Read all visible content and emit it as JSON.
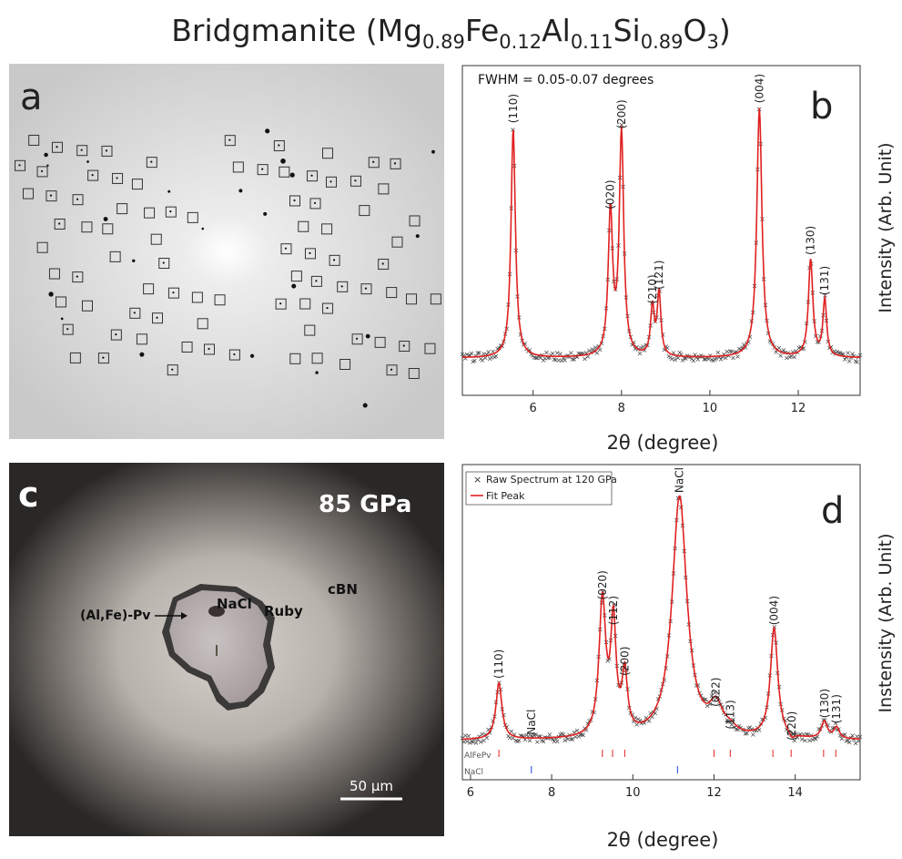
{
  "title": {
    "prefix": "Bridgmanite (",
    "el1": "Mg",
    "s1": "0.89",
    "el2": "Fe",
    "s2": "0.12",
    "el3": "Al",
    "s3": "0.11",
    "el4": "Si",
    "s4": "0.89",
    "el5": "O",
    "s5": "3",
    "suffix": ")"
  },
  "panel_a": {
    "letter": "a"
  },
  "panel_c": {
    "letter": "c",
    "pressure": "85 GPa",
    "labels": {
      "nacl": "NaCl",
      "cbn": "cBN",
      "sample": "(Al,Fe)-Pv",
      "ruby": "Ruby"
    },
    "scale_bar": "50 µm"
  },
  "chart_data": [
    {
      "type": "line",
      "panel": "b",
      "annotation": "FWHM = 0.05-0.07 degrees",
      "xlabel": "2θ (degree)",
      "ylabel": "Intensity (Arb. Unit)",
      "xlim": [
        4.4,
        13.4
      ],
      "xticks": [
        6,
        8,
        10,
        12
      ],
      "ylim": [
        0,
        1.15
      ],
      "baseline": 0.13,
      "peaks": [
        {
          "label": "(110)",
          "x": 5.55,
          "y": 0.93
        },
        {
          "label": "(020)",
          "x": 7.75,
          "y": 0.63
        },
        {
          "label": "(200)",
          "x": 8.0,
          "y": 0.91
        },
        {
          "label": "(210)",
          "x": 8.7,
          "y": 0.3
        },
        {
          "label": "(121)",
          "x": 8.85,
          "y": 0.35
        },
        {
          "label": "(004)",
          "x": 11.12,
          "y": 1.0
        },
        {
          "label": "(130)",
          "x": 12.28,
          "y": 0.47
        },
        {
          "label": "(131)",
          "x": 12.6,
          "y": 0.33
        }
      ],
      "series": [
        {
          "name": "",
          "color": "#e02020"
        }
      ]
    },
    {
      "type": "line",
      "panel": "d",
      "xlabel": "2θ (degree)",
      "ylabel": "Instensity (Arb. Unit)",
      "xlim": [
        5.8,
        15.6
      ],
      "xticks": [
        6,
        8,
        10,
        12,
        14
      ],
      "ylim": [
        0,
        1.12
      ],
      "baseline": 0.14,
      "legend": [
        "Raw Spectrum at 120 GPa",
        "Fit Peak"
      ],
      "legend_position": "top-left",
      "tick_rows": [
        "AlFePv",
        "NaCl"
      ],
      "alfepv_ticks": [
        6.7,
        9.25,
        9.5,
        9.8,
        12.0,
        12.4,
        13.45,
        13.9,
        14.7,
        15.0
      ],
      "nacl_ticks": [
        7.5,
        11.1
      ],
      "peaks": [
        {
          "label": "(110)",
          "x": 6.7,
          "y": 0.34
        },
        {
          "label": "NaCl",
          "x": 7.5,
          "y": 0.14
        },
        {
          "label": "(020)",
          "x": 9.25,
          "y": 0.62
        },
        {
          "label": "(112)",
          "x": 9.52,
          "y": 0.53
        },
        {
          "label": "(200)",
          "x": 9.8,
          "y": 0.35
        },
        {
          "label": "NaCl",
          "x": 11.15,
          "y": 1.0
        },
        {
          "label": "(022)",
          "x": 12.05,
          "y": 0.24
        },
        {
          "label": "(113)",
          "x": 12.4,
          "y": 0.16
        },
        {
          "label": "(004)",
          "x": 13.48,
          "y": 0.53
        },
        {
          "label": "(220)",
          "x": 13.92,
          "y": 0.12
        },
        {
          "label": "(130)",
          "x": 14.72,
          "y": 0.2
        },
        {
          "label": "(131)",
          "x": 15.02,
          "y": 0.18
        }
      ],
      "series": [
        {
          "name": "Raw Spectrum at 120 GPa",
          "color": "#333333"
        },
        {
          "name": "Fit Peak",
          "color": "#e02020"
        }
      ]
    }
  ]
}
